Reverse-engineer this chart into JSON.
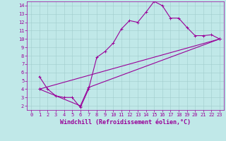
{
  "xlabel": "Windchill (Refroidissement éolien,°C)",
  "ylabel": "",
  "xlim": [
    -0.5,
    23.5
  ],
  "ylim": [
    1.5,
    14.5
  ],
  "xticks": [
    0,
    1,
    2,
    3,
    4,
    5,
    6,
    7,
    8,
    9,
    10,
    11,
    12,
    13,
    14,
    15,
    16,
    17,
    18,
    19,
    20,
    21,
    22,
    23
  ],
  "yticks": [
    2,
    3,
    4,
    5,
    6,
    7,
    8,
    9,
    10,
    11,
    12,
    13,
    14
  ],
  "bg_color": "#c0e8e8",
  "grid_color": "#a0cccc",
  "line_color": "#990099",
  "line1_x": [
    1,
    2,
    3,
    4,
    5,
    6,
    7,
    8,
    9,
    10,
    11,
    12,
    13,
    14,
    15,
    16,
    17,
    18,
    19,
    20,
    21,
    22,
    23
  ],
  "line1_y": [
    5.5,
    4.0,
    3.2,
    3.0,
    3.0,
    1.8,
    4.0,
    7.8,
    8.5,
    9.5,
    11.2,
    12.2,
    12.0,
    13.2,
    14.5,
    14.0,
    12.5,
    12.5,
    11.4,
    10.4,
    10.4,
    10.5,
    10.0
  ],
  "line2_x": [
    1,
    23
  ],
  "line2_y": [
    4.0,
    10.0
  ],
  "line3_x": [
    1,
    6,
    7,
    23
  ],
  "line3_y": [
    4.0,
    2.0,
    4.2,
    10.0
  ],
  "marker": "+",
  "markersize": 3,
  "linewidth": 0.8,
  "tick_fontsize": 5,
  "label_fontsize": 6
}
